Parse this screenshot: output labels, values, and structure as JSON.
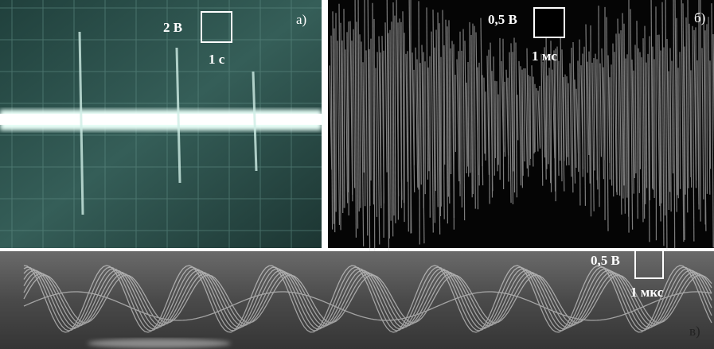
{
  "panels": [
    {
      "label": "а)",
      "scale_y": "2 В",
      "scale_x": "1 с"
    },
    {
      "label": "б)",
      "scale_y": "0,5 В",
      "scale_x": "1 мс"
    },
    {
      "label": "в)",
      "scale_y": "0,5 В",
      "scale_x": "1 мкс"
    }
  ]
}
